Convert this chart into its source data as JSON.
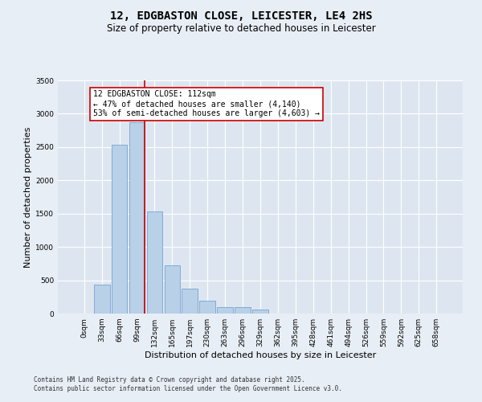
{
  "title_line1": "12, EDGBASTON CLOSE, LEICESTER, LE4 2HS",
  "title_line2": "Size of property relative to detached houses in Leicester",
  "xlabel": "Distribution of detached houses by size in Leicester",
  "ylabel": "Number of detached properties",
  "bar_categories": [
    "0sqm",
    "33sqm",
    "66sqm",
    "99sqm",
    "132sqm",
    "165sqm",
    "197sqm",
    "230sqm",
    "263sqm",
    "296sqm",
    "329sqm",
    "362sqm",
    "395sqm",
    "428sqm",
    "461sqm",
    "494sqm",
    "526sqm",
    "559sqm",
    "592sqm",
    "625sqm",
    "658sqm"
  ],
  "bar_heights": [
    5,
    430,
    2530,
    2870,
    1530,
    730,
    370,
    190,
    95,
    95,
    60,
    0,
    0,
    0,
    0,
    0,
    0,
    0,
    0,
    0,
    0
  ],
  "bar_color": "#b8d0e8",
  "bar_edge_color": "#6699cc",
  "ylim": [
    0,
    3500
  ],
  "yticks": [
    0,
    500,
    1000,
    1500,
    2000,
    2500,
    3000,
    3500
  ],
  "red_line_x": 3.45,
  "annotation_title": "12 EDGBASTON CLOSE: 112sqm",
  "annotation_line1": "← 47% of detached houses are smaller (4,140)",
  "annotation_line2": "53% of semi-detached houses are larger (4,603) →",
  "annotation_box_color": "#ffffff",
  "annotation_box_edge": "#cc0000",
  "red_line_color": "#cc0000",
  "footnote_line1": "Contains HM Land Registry data © Crown copyright and database right 2025.",
  "footnote_line2": "Contains public sector information licensed under the Open Government Licence v3.0.",
  "bg_color": "#e8eef5",
  "plot_bg_color": "#dde6f0",
  "grid_color": "#ffffff",
  "title1_fontsize": 10,
  "title2_fontsize": 8.5,
  "axis_label_fontsize": 8,
  "tick_fontsize": 6.5,
  "annotation_fontsize": 7,
  "footnote_fontsize": 5.5
}
